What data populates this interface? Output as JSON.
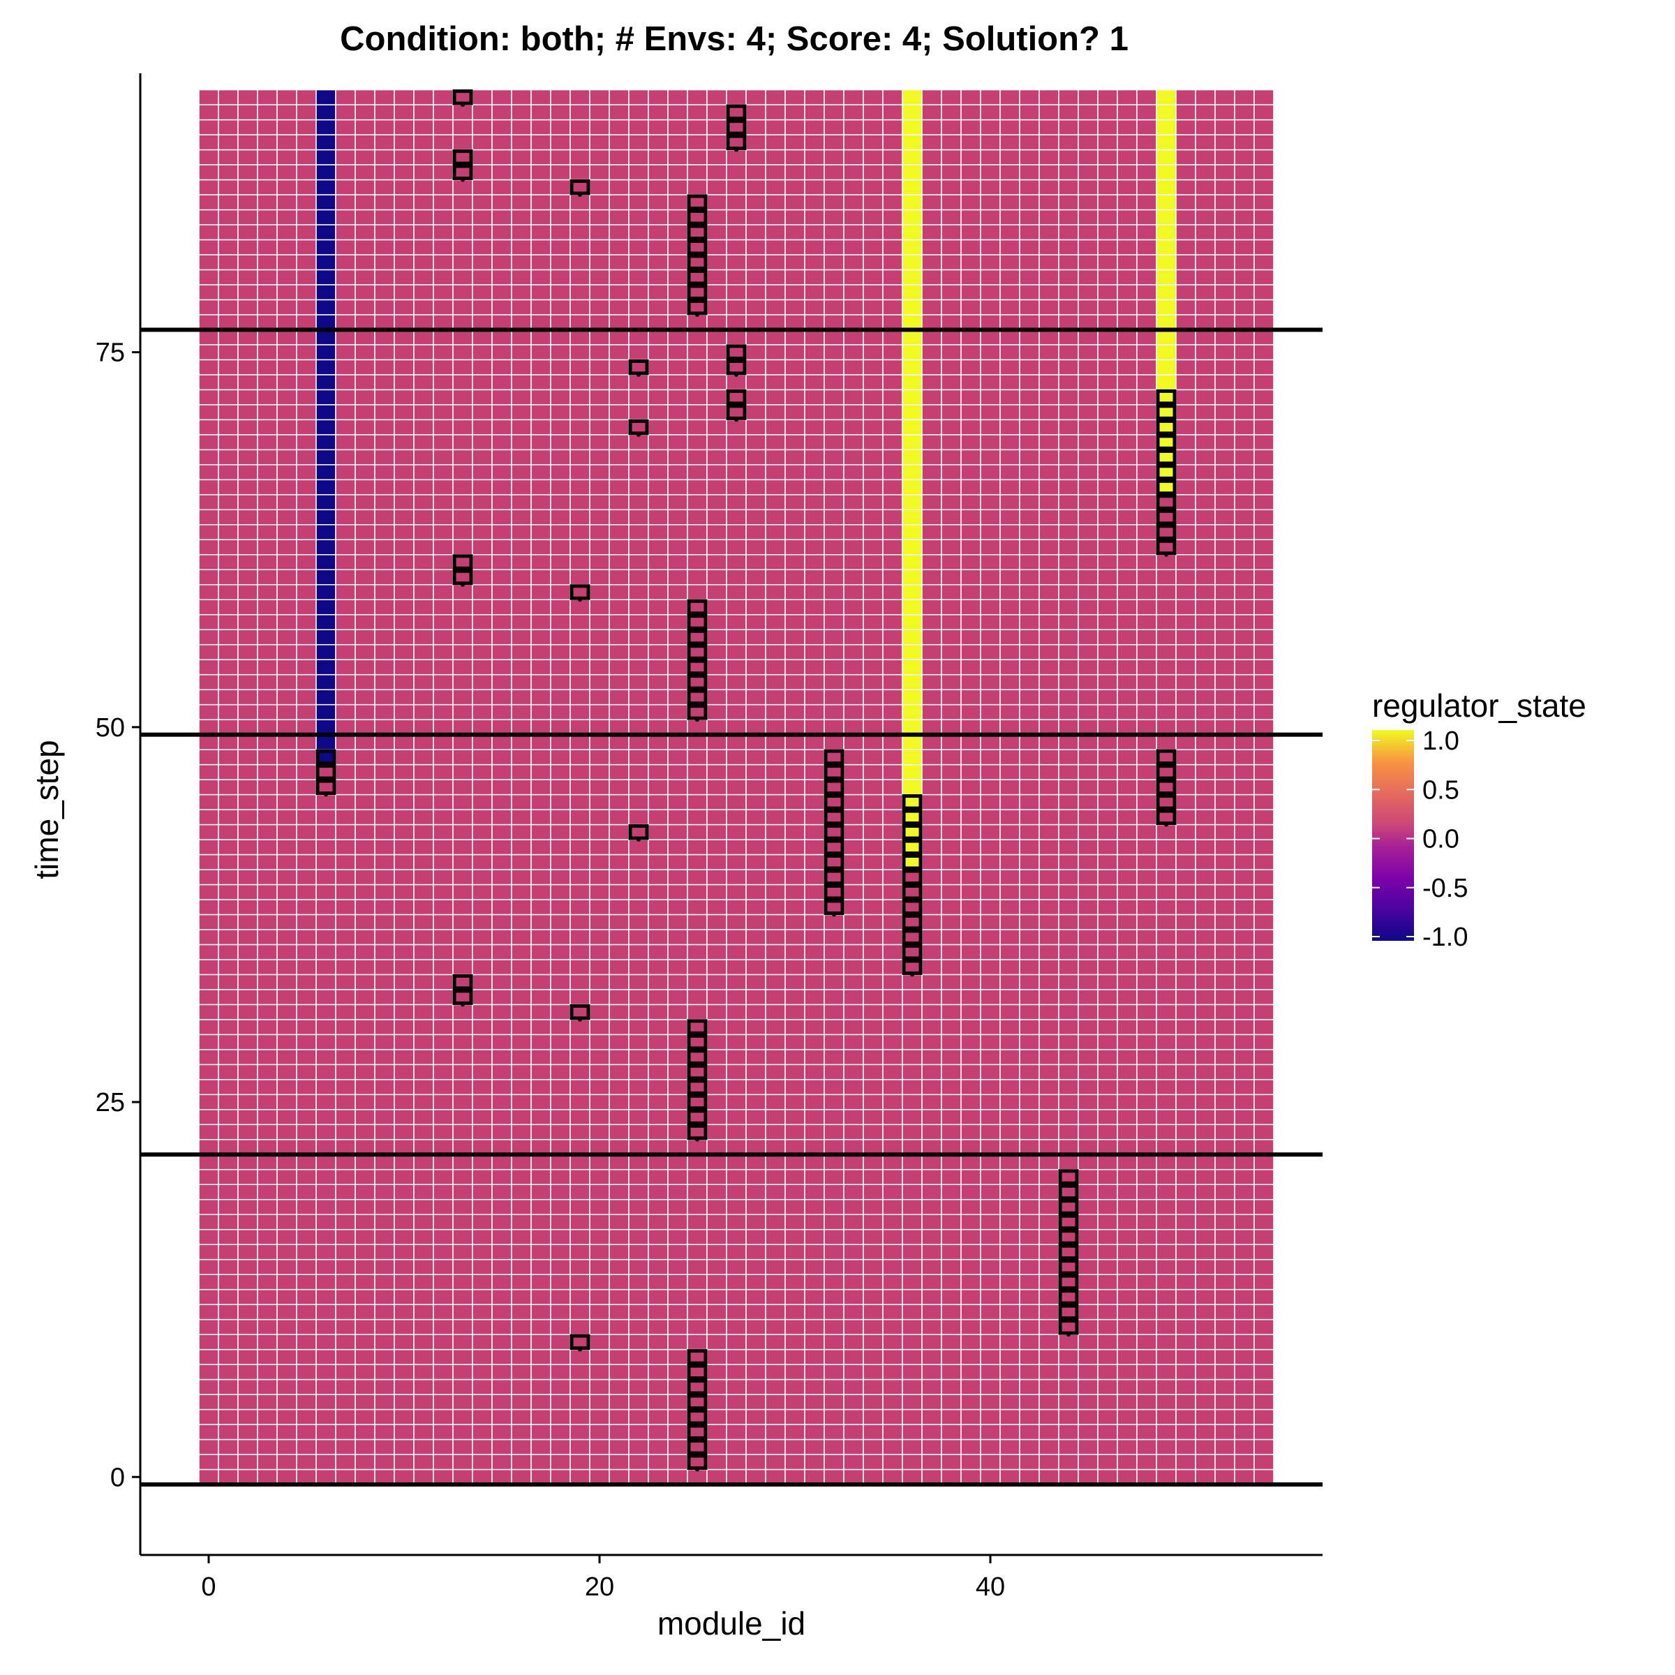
{
  "chart_data": {
    "type": "heatmap",
    "title": "Condition: both; # Envs: 4; Score: 4; Solution? 1",
    "xlabel": "module_id",
    "ylabel": "time_step",
    "xlim": [
      -3.5,
      57
    ],
    "ylim": [
      -5.2,
      93.6
    ],
    "x_ticks": [
      0,
      20,
      40
    ],
    "y_ticks": [
      0,
      25,
      50,
      75
    ],
    "x_tick_labels": [
      "0",
      "20",
      "40"
    ],
    "y_tick_labels": [
      "0",
      "25",
      "50",
      "75"
    ],
    "modules": 55,
    "time_steps": 93,
    "grid": true,
    "default_state": 0,
    "state_columns": [
      {
        "module": 6,
        "from": 48,
        "to": 92,
        "value": -1
      },
      {
        "module": 36,
        "from": 41,
        "to": 92,
        "value": 1
      },
      {
        "module": 49,
        "from": 66,
        "to": 92,
        "value": 1
      }
    ],
    "highlight_runs": [
      {
        "module": 6,
        "from": 46,
        "to": 48
      },
      {
        "module": 13,
        "from": 32,
        "to": 33
      },
      {
        "module": 13,
        "from": 60,
        "to": 61
      },
      {
        "module": 13,
        "from": 87,
        "to": 88
      },
      {
        "module": 13,
        "from": 92,
        "to": 92
      },
      {
        "module": 19,
        "from": 9,
        "to": 9
      },
      {
        "module": 19,
        "from": 31,
        "to": 31
      },
      {
        "module": 19,
        "from": 59,
        "to": 59
      },
      {
        "module": 19,
        "from": 86,
        "to": 86
      },
      {
        "module": 22,
        "from": 43,
        "to": 43
      },
      {
        "module": 22,
        "from": 70,
        "to": 70
      },
      {
        "module": 22,
        "from": 74,
        "to": 74
      },
      {
        "module": 25,
        "from": 1,
        "to": 8
      },
      {
        "module": 25,
        "from": 23,
        "to": 30
      },
      {
        "module": 25,
        "from": 51,
        "to": 58
      },
      {
        "module": 25,
        "from": 78,
        "to": 85
      },
      {
        "module": 27,
        "from": 71,
        "to": 72
      },
      {
        "module": 27,
        "from": 74,
        "to": 75
      },
      {
        "module": 27,
        "from": 89,
        "to": 91
      },
      {
        "module": 32,
        "from": 38,
        "to": 48
      },
      {
        "module": 36,
        "from": 34,
        "to": 45
      },
      {
        "module": 44,
        "from": 10,
        "to": 20
      },
      {
        "module": 49,
        "from": 44,
        "to": 48
      },
      {
        "module": 49,
        "from": 62,
        "to": 72
      }
    ],
    "environment_boundaries": [
      -0.5,
      21.5,
      49.5,
      76.5
    ],
    "legend": {
      "title": "regulator_state",
      "position": "right",
      "ticks": [
        1.0,
        0.5,
        0.0,
        -0.5,
        -1.0
      ],
      "tick_labels": [
        "1.0",
        "0.5",
        "0.0",
        "-0.5",
        "-1.0"
      ]
    },
    "colors": {
      "neutral": "#c53f73",
      "negative": "#0d0887",
      "positive": "#f0f921",
      "cell_border": "#ffffff",
      "highlight": "#000000"
    }
  }
}
